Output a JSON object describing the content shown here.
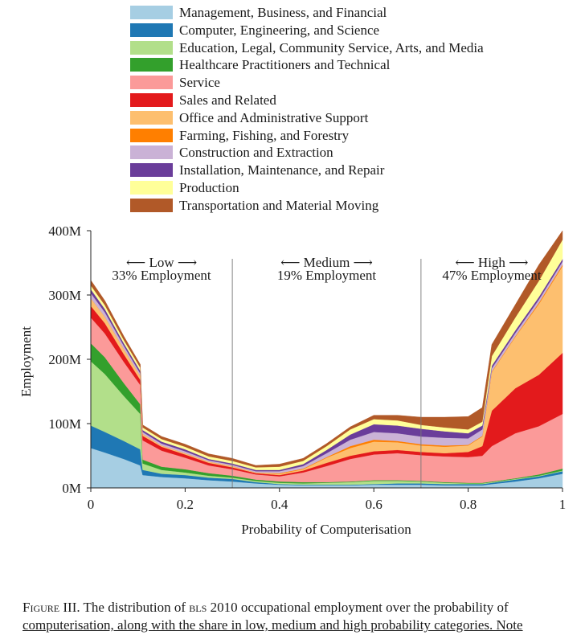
{
  "legend": [
    {
      "label": "Management, Business, and Financial",
      "color": "#a6cee3"
    },
    {
      "label": "Computer, Engineering, and Science",
      "color": "#1f78b4"
    },
    {
      "label": "Education, Legal, Community Service, Arts, and Media",
      "color": "#b2df8a"
    },
    {
      "label": "Healthcare Practitioners and Technical",
      "color": "#33a02c"
    },
    {
      "label": "Service",
      "color": "#fb9a99"
    },
    {
      "label": "Sales and Related",
      "color": "#e31a1c"
    },
    {
      "label": "Office and Administrative Support",
      "color": "#fdbf6f"
    },
    {
      "label": "Farming, Fishing, and Forestry",
      "color": "#ff7f00"
    },
    {
      "label": "Construction and Extraction",
      "color": "#cab2d6"
    },
    {
      "label": "Installation, Maintenance, and Repair",
      "color": "#6a3d9a"
    },
    {
      "label": "Production",
      "color": "#ffff99"
    },
    {
      "label": "Transportation and Material Moving",
      "color": "#b15928"
    }
  ],
  "chart_data": {
    "type": "area",
    "stacked": true,
    "xlabel": "Probability of Computerisation",
    "ylabel": "Employment",
    "xlim": [
      0,
      1
    ],
    "ylim": [
      0,
      400
    ],
    "x_ticks": [
      0,
      0.2,
      0.4,
      0.6,
      0.8,
      1
    ],
    "x_tick_labels": [
      "0",
      "0.2",
      "0.4",
      "0.6",
      "0.8",
      "1"
    ],
    "y_ticks": [
      0,
      100,
      200,
      300,
      400
    ],
    "y_tick_labels": [
      "0M",
      "100M",
      "200M",
      "300M",
      "400M"
    ],
    "thresholds": [
      0.3,
      0.7
    ],
    "regions": [
      {
        "name": "Low",
        "share": "33% Employment"
      },
      {
        "name": "Medium",
        "share": "19% Employment"
      },
      {
        "name": "High",
        "share": "47% Employment"
      }
    ],
    "x": [
      0,
      0.03,
      0.07,
      0.105,
      0.11,
      0.15,
      0.2,
      0.25,
      0.3,
      0.35,
      0.4,
      0.45,
      0.5,
      0.55,
      0.6,
      0.65,
      0.7,
      0.75,
      0.8,
      0.83,
      0.85,
      0.9,
      0.95,
      1.0
    ],
    "series": [
      {
        "name": "Management, Business, and Financial",
        "values": [
          62,
          55,
          45,
          35,
          20,
          17,
          15,
          12,
          10,
          7,
          5,
          4,
          4,
          4,
          5,
          5,
          5,
          4,
          4,
          4,
          6,
          10,
          15,
          22
        ]
      },
      {
        "name": "Computer, Engineering, and Science",
        "values": [
          35,
          32,
          28,
          25,
          8,
          5,
          5,
          4,
          4,
          2,
          1,
          1,
          1,
          1,
          1,
          2,
          2,
          2,
          2,
          2,
          2,
          3,
          3,
          4
        ]
      },
      {
        "name": "Education, Legal, Community Service, Arts, and Media",
        "values": [
          100,
          90,
          70,
          55,
          10,
          6,
          4,
          3,
          2,
          2,
          2,
          2,
          3,
          4,
          5,
          4,
          3,
          2,
          1,
          1,
          1,
          1,
          1,
          1
        ]
      },
      {
        "name": "Healthcare Practitioners and Technical",
        "values": [
          28,
          26,
          20,
          15,
          6,
          5,
          5,
          4,
          3,
          2,
          2,
          2,
          1,
          1,
          1,
          1,
          1,
          1,
          1,
          1,
          1,
          1,
          2,
          3
        ]
      },
      {
        "name": "Service",
        "values": [
          40,
          37,
          33,
          30,
          30,
          25,
          18,
          12,
          10,
          8,
          8,
          15,
          25,
          35,
          40,
          42,
          40,
          40,
          40,
          42,
          55,
          70,
          75,
          85
        ]
      },
      {
        "name": "Sales and Related",
        "values": [
          18,
          16,
          12,
          8,
          7,
          6,
          5,
          4,
          3,
          2,
          2,
          3,
          5,
          5,
          5,
          5,
          5,
          5,
          8,
          15,
          55,
          70,
          80,
          95
        ]
      },
      {
        "name": "Office and Administrative Support",
        "values": [
          12,
          10,
          8,
          6,
          3,
          2,
          2,
          2,
          2,
          1,
          2,
          2,
          8,
          12,
          15,
          12,
          10,
          10,
          10,
          15,
          60,
          80,
          110,
          135
        ]
      },
      {
        "name": "Farming, Fishing, and Forestry",
        "values": [
          0,
          0,
          0,
          0,
          0,
          0,
          0,
          0,
          0,
          0,
          1,
          1,
          1,
          3,
          3,
          2,
          2,
          2,
          1,
          1,
          1,
          1,
          2,
          2
        ]
      },
      {
        "name": "Construction and Extraction",
        "values": [
          8,
          7,
          5,
          4,
          3,
          3,
          3,
          2,
          2,
          2,
          3,
          4,
          6,
          10,
          12,
          12,
          12,
          12,
          10,
          10,
          5,
          5,
          5,
          5
        ]
      },
      {
        "name": "Installation, Maintenance, and Repair",
        "values": [
          6,
          5,
          4,
          4,
          3,
          3,
          3,
          2,
          2,
          2,
          2,
          3,
          5,
          8,
          12,
          12,
          12,
          10,
          8,
          6,
          4,
          4,
          4,
          4
        ]
      },
      {
        "name": "Production",
        "values": [
          6,
          6,
          5,
          5,
          4,
          4,
          4,
          4,
          4,
          4,
          5,
          5,
          6,
          8,
          8,
          8,
          6,
          6,
          6,
          6,
          15,
          20,
          25,
          30
        ]
      },
      {
        "name": "Transportation and Material Moving",
        "values": [
          8,
          7,
          6,
          5,
          4,
          4,
          4,
          4,
          4,
          3,
          4,
          4,
          4,
          4,
          6,
          8,
          12,
          16,
          20,
          22,
          18,
          20,
          25,
          14
        ]
      }
    ]
  },
  "caption": {
    "fig_prefix": "Figure III.",
    "text1": " The distribution of ",
    "bls": "bls",
    "text2": " 2010 occupational employment over the probability of",
    "line2": "computerisation, along with the share in low, medium and high probability categories. Note"
  }
}
